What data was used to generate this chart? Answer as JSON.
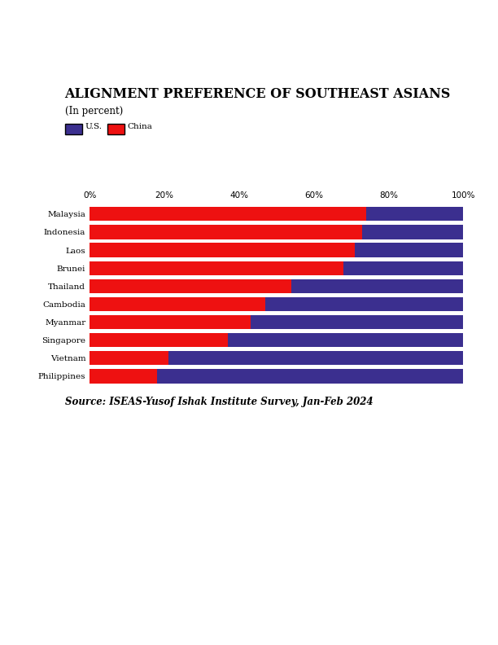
{
  "title": "ALIGNMENT PREFERENCE OF SOUTHEAST ASIANS",
  "subtitle": "(In percent)",
  "source": "Source: ISEAS-Yusof Ishak Institute Survey, Jan-Feb 2024",
  "categories": [
    "Malaysia",
    "Indonesia",
    "Laos",
    "Brunei",
    "Thailand",
    "Cambodia",
    "Myanmar",
    "Singapore",
    "Vietnam",
    "Philippines"
  ],
  "china_values": [
    74,
    73,
    71,
    68,
    54,
    47,
    43,
    37,
    21,
    18
  ],
  "us_values": [
    26,
    27,
    29,
    32,
    46,
    53,
    57,
    63,
    79,
    82
  ],
  "china_color": "#EE1111",
  "us_color": "#3B2F8F",
  "background_color": "#FFFFFF",
  "bar_height": 0.78,
  "legend_us_label": "U.S.",
  "legend_china_label": "China",
  "title_fontsize": 11.5,
  "subtitle_fontsize": 8.5,
  "source_fontsize": 8.5,
  "tick_fontsize": 7.5,
  "label_fontsize": 7.5
}
